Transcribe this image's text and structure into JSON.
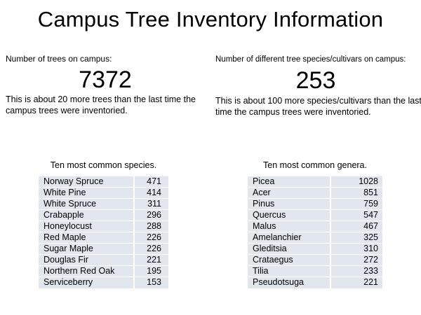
{
  "title": "Campus Tree Inventory Information",
  "stats": {
    "trees": {
      "label": "Number of trees on campus:",
      "value": "7372",
      "note_line1": "This is about 20 more trees than the last time the",
      "note_line2": "campus trees were inventoried."
    },
    "species": {
      "label": "Number of different tree species/cultivars on campus:",
      "value": "253",
      "note_line1": "This is about 100 more species/cultivars than the last",
      "note_line2": "time the campus trees were inventoried."
    }
  },
  "tables": {
    "species": {
      "caption": "Ten most common species.",
      "rows": [
        [
          "Norway Spruce",
          "471"
        ],
        [
          "White Pine",
          "414"
        ],
        [
          "White Spruce",
          "311"
        ],
        [
          "Crabapple",
          "296"
        ],
        [
          "Honeylocust",
          "288"
        ],
        [
          "Red Maple",
          "226"
        ],
        [
          "Sugar Maple",
          "226"
        ],
        [
          "Douglas Fir",
          "221"
        ],
        [
          "Northern Red Oak",
          "195"
        ],
        [
          "Serviceberry",
          "153"
        ]
      ]
    },
    "genera": {
      "caption": "Ten most common genera.",
      "rows": [
        [
          "Picea",
          "1028"
        ],
        [
          "Acer",
          "851"
        ],
        [
          "Pinus",
          "759"
        ],
        [
          "Quercus",
          "547"
        ],
        [
          "Malus",
          "467"
        ],
        [
          "Amelanchier",
          "325"
        ],
        [
          "Gleditsia",
          "310"
        ],
        [
          "Crataegus",
          "272"
        ],
        [
          "Tilia",
          "233"
        ],
        [
          "Pseudotsuga",
          "221"
        ]
      ]
    }
  },
  "colors": {
    "background": "#ffffff",
    "text": "#000000",
    "table_row_bg": "#e1e7ed",
    "table_separator": "#ffffff"
  }
}
